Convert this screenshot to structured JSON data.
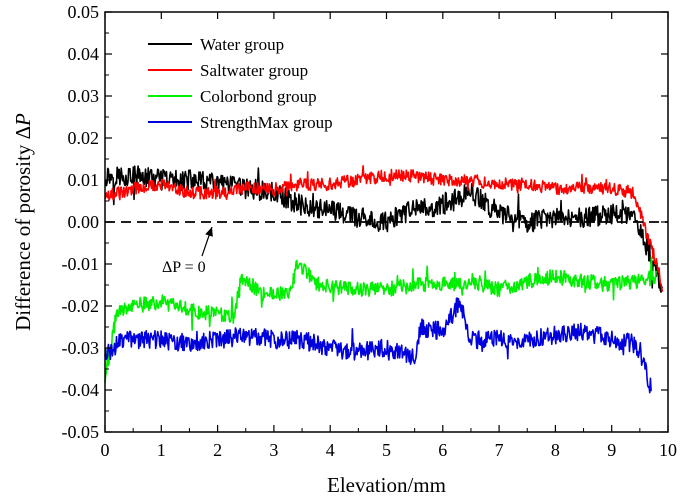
{
  "chart_data": {
    "type": "line",
    "title": "",
    "xlabel": "Elevation/mm",
    "ylabel_main": "Difference of porosity Δ",
    "ylabel_var": "P",
    "xlim": [
      0,
      10
    ],
    "ylim": [
      -0.05,
      0.05
    ],
    "xticks": [
      0,
      1,
      2,
      3,
      4,
      5,
      6,
      7,
      8,
      9,
      10
    ],
    "xtick_labels": [
      "0",
      "1",
      "2",
      "3",
      "4",
      "5",
      "6",
      "7",
      "8",
      "9",
      "10"
    ],
    "yticks": [
      -0.05,
      -0.04,
      -0.03,
      -0.02,
      -0.01,
      0.0,
      0.01,
      0.02,
      0.03,
      0.04,
      0.05
    ],
    "ytick_labels": [
      "-0.05",
      "-0.04",
      "-0.03",
      "-0.02",
      "-0.01",
      "0.00",
      "0.01",
      "0.02",
      "0.03",
      "0.04",
      "0.05"
    ],
    "legend_position": "top-left",
    "reference_line": {
      "y": 0,
      "style": "dashed"
    },
    "annotation": {
      "text": "ΔP = 0",
      "points_to": {
        "x": 1.9,
        "y": 0
      }
    },
    "series": [
      {
        "name": "Water group",
        "color": "#000000",
        "x": [
          0,
          0.5,
          1.0,
          1.5,
          2.0,
          2.5,
          3.0,
          3.5,
          4.0,
          4.5,
          5.0,
          5.5,
          6.0,
          6.5,
          7.0,
          7.5,
          8.0,
          8.5,
          9.0,
          9.4,
          9.6,
          9.8,
          9.9
        ],
        "values": [
          0.011,
          0.011,
          0.01,
          0.01,
          0.009,
          0.008,
          0.007,
          0.004,
          0.003,
          0.001,
          0.0,
          0.003,
          0.004,
          0.007,
          0.002,
          0.0,
          0.001,
          0.001,
          0.002,
          0.001,
          -0.005,
          -0.012,
          -0.018
        ],
        "noise": 0.0025
      },
      {
        "name": "Saltwater group",
        "color": "#ff0000",
        "x": [
          0,
          0.5,
          1.0,
          1.5,
          2.0,
          2.5,
          3.0,
          3.5,
          4.0,
          4.5,
          5.0,
          5.5,
          6.0,
          6.5,
          7.0,
          7.5,
          8.0,
          8.5,
          9.0,
          9.4,
          9.6,
          9.8,
          9.9
        ],
        "values": [
          0.006,
          0.008,
          0.009,
          0.007,
          0.007,
          0.008,
          0.008,
          0.009,
          0.009,
          0.01,
          0.011,
          0.011,
          0.01,
          0.01,
          0.009,
          0.009,
          0.008,
          0.008,
          0.008,
          0.007,
          -0.002,
          -0.01,
          -0.016
        ],
        "noise": 0.0015
      },
      {
        "name": "Colorbond group",
        "color": "#00ee00",
        "x": [
          0,
          0.2,
          0.5,
          1.0,
          1.5,
          2.0,
          2.3,
          2.4,
          2.8,
          3.3,
          3.4,
          3.8,
          4.5,
          5.0,
          5.5,
          6.0,
          6.5,
          7.0,
          7.5,
          8.0,
          8.5,
          9.0,
          9.5,
          9.8
        ],
        "values": [
          -0.038,
          -0.022,
          -0.02,
          -0.019,
          -0.021,
          -0.022,
          -0.023,
          -0.013,
          -0.017,
          -0.017,
          -0.01,
          -0.015,
          -0.016,
          -0.016,
          -0.015,
          -0.015,
          -0.014,
          -0.016,
          -0.014,
          -0.013,
          -0.014,
          -0.015,
          -0.014,
          -0.013
        ],
        "noise": 0.0018
      },
      {
        "name": "StrengthMax group",
        "color": "#0000dd",
        "x": [
          0,
          0.3,
          1.0,
          1.5,
          2.0,
          2.5,
          3.0,
          3.5,
          4.0,
          4.5,
          5.0,
          5.5,
          5.6,
          6.0,
          6.3,
          6.5,
          7.0,
          7.5,
          8.0,
          8.5,
          9.0,
          9.4,
          9.6,
          9.7
        ],
        "values": [
          -0.032,
          -0.028,
          -0.028,
          -0.029,
          -0.028,
          -0.027,
          -0.028,
          -0.028,
          -0.03,
          -0.031,
          -0.03,
          -0.032,
          -0.025,
          -0.026,
          -0.019,
          -0.028,
          -0.028,
          -0.028,
          -0.027,
          -0.026,
          -0.028,
          -0.029,
          -0.035,
          -0.04
        ],
        "noise": 0.0022
      }
    ]
  }
}
